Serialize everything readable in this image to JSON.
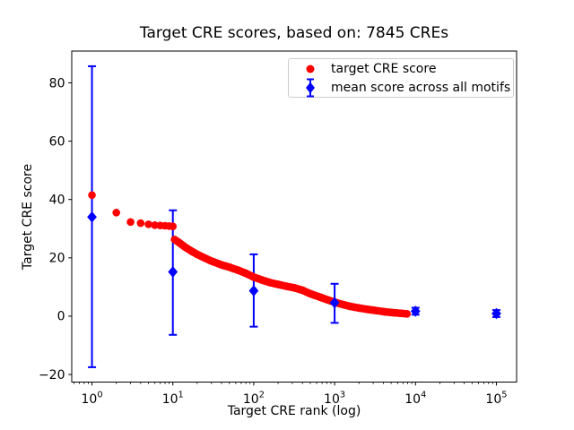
{
  "title": "Target CRE scores, based on: 7845 CREs",
  "axes": {
    "xlabel": "Target CRE rank (log)",
    "ylabel": "Target CRE score"
  },
  "legend": {
    "position": "upper right",
    "items": [
      {
        "label": "target CRE score",
        "marker": "circle",
        "color": "#ff0000"
      },
      {
        "label": "mean score across all motifs",
        "marker": "diamond-with-errorbar",
        "color": "#0000ff"
      }
    ]
  },
  "chart_data": {
    "type": "scatter",
    "title": "Target CRE scores, based on: 7845 CREs",
    "xlabel": "Target CRE rank (log)",
    "ylabel": "Target CRE score",
    "x_scale": "log",
    "xlim": [
      0.5623,
      177828
    ],
    "ylim": [
      -22.6,
      90.9
    ],
    "x_tick_exponents": [
      0,
      1,
      2,
      3,
      4,
      5
    ],
    "y_ticks": [
      -20,
      0,
      20,
      40,
      60,
      80
    ],
    "grid": false,
    "legend_position": "upper right",
    "series": [
      {
        "name": "target CRE score",
        "marker": "circle",
        "color": "#ff0000",
        "n_points_depicted": 7845,
        "head_points": [
          [
            1,
            41.5
          ],
          [
            2,
            35.5
          ],
          [
            3,
            32.3
          ],
          [
            4,
            31.9
          ],
          [
            5,
            31.5
          ],
          [
            6,
            31.2
          ],
          [
            7,
            31.1
          ],
          [
            8,
            31.0
          ],
          [
            9,
            30.9
          ],
          [
            10,
            30.8
          ]
        ],
        "band_points": [
          [
            10.5,
            26.3
          ],
          [
            12,
            25.2
          ],
          [
            14,
            23.8
          ],
          [
            17,
            22.3
          ],
          [
            20,
            21.2
          ],
          [
            25,
            19.9
          ],
          [
            30,
            18.9
          ],
          [
            40,
            17.6
          ],
          [
            50,
            16.8
          ],
          [
            65,
            15.7
          ],
          [
            80,
            14.7
          ],
          [
            100,
            13.4
          ],
          [
            130,
            12.3
          ],
          [
            160,
            11.5
          ],
          [
            200,
            10.9
          ],
          [
            250,
            10.3
          ],
          [
            320,
            9.7
          ],
          [
            400,
            8.9
          ],
          [
            500,
            7.7
          ],
          [
            650,
            6.6
          ],
          [
            800,
            5.7
          ],
          [
            1000,
            4.8
          ],
          [
            1300,
            3.9
          ],
          [
            1600,
            3.3
          ],
          [
            2000,
            2.8
          ],
          [
            2600,
            2.3
          ],
          [
            3300,
            1.9
          ],
          [
            4200,
            1.5
          ],
          [
            5300,
            1.2
          ],
          [
            6500,
            1.0
          ],
          [
            7845,
            0.8
          ]
        ]
      },
      {
        "name": "mean score across all motifs",
        "marker": "diamond",
        "color": "#0000ff",
        "points": [
          [
            1,
            34.0
          ],
          [
            10,
            15.2
          ],
          [
            100,
            8.7
          ],
          [
            1000,
            4.6
          ],
          [
            10000,
            1.7
          ],
          [
            100000,
            0.9
          ]
        ],
        "error_low": [
          -17.5,
          -6.4,
          -3.6,
          -2.3,
          0.5,
          -0.3
        ],
        "error_high": [
          85.7,
          36.3,
          21.2,
          11.1,
          2.9,
          2.1
        ]
      }
    ]
  }
}
